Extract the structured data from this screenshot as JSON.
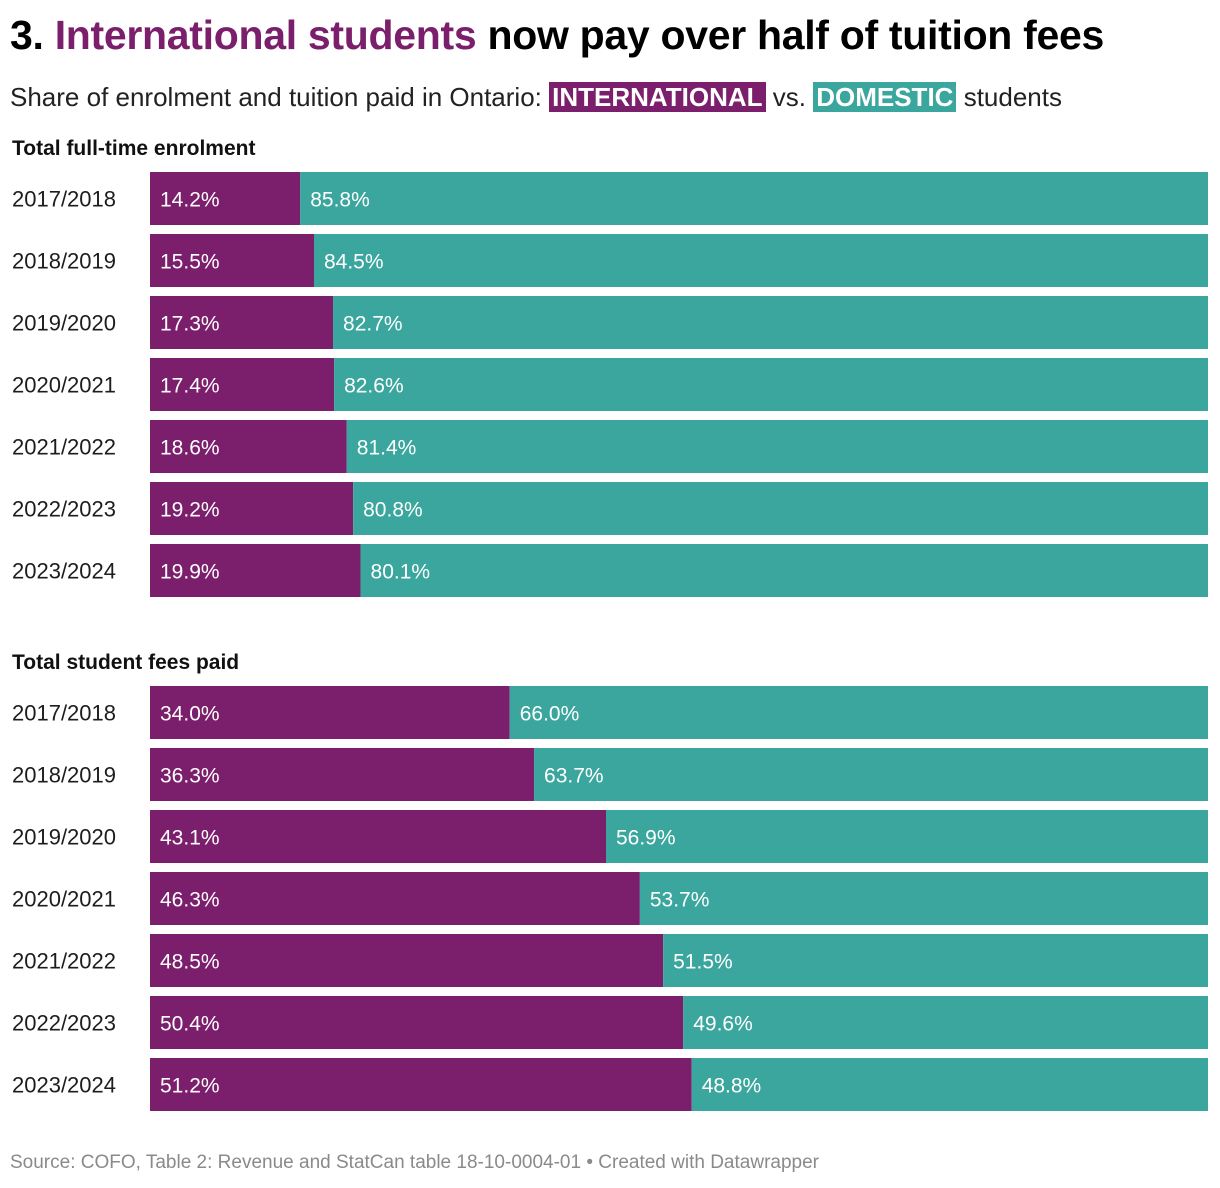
{
  "header": {
    "title_prefix": "3.",
    "title_highlight": "International students",
    "title_rest": "now pay over half of tuition fees",
    "subtitle_prefix": "Share of enrolment and tuition paid in Ontario:",
    "tag_international": "INTERNATIONAL",
    "subtitle_vs": "vs.",
    "tag_domestic": "DOMESTIC",
    "subtitle_suffix": "students"
  },
  "colors": {
    "international": "#7b1e6b",
    "domestic": "#3aa69e"
  },
  "chart_data": [
    {
      "type": "bar",
      "orientation": "horizontal",
      "stacked": true,
      "title": "Total full-time enrolment",
      "categories": [
        "2017/2018",
        "2018/2019",
        "2019/2020",
        "2020/2021",
        "2021/2022",
        "2022/2023",
        "2023/2024"
      ],
      "series": [
        {
          "values": [
            14.2,
            15.5,
            17.3,
            17.4,
            18.6,
            19.2,
            19.9
          ],
          "color": "#7b1e6b"
        },
        {
          "values": [
            85.8,
            84.5,
            82.7,
            82.6,
            81.4,
            80.8,
            80.1
          ],
          "color": "#3aa69e"
        }
      ],
      "xlim": [
        0,
        100
      ],
      "value_suffix": "%"
    },
    {
      "type": "bar",
      "orientation": "horizontal",
      "stacked": true,
      "title": "Total student fees paid",
      "categories": [
        "2017/2018",
        "2018/2019",
        "2019/2020",
        "2020/2021",
        "2021/2022",
        "2022/2023",
        "2023/2024"
      ],
      "series": [
        {
          "values": [
            34.0,
            36.3,
            43.1,
            46.3,
            48.5,
            50.4,
            51.2
          ],
          "color": "#7b1e6b"
        },
        {
          "values": [
            66.0,
            63.7,
            56.9,
            53.7,
            51.5,
            49.6,
            48.8
          ],
          "color": "#3aa69e"
        }
      ],
      "xlim": [
        0,
        100
      ],
      "value_suffix": "%"
    }
  ],
  "footer": {
    "source": "Source: COFO, Table 2: Revenue and StatCan table 18-10-0004-01 • Created with Datawrapper"
  }
}
